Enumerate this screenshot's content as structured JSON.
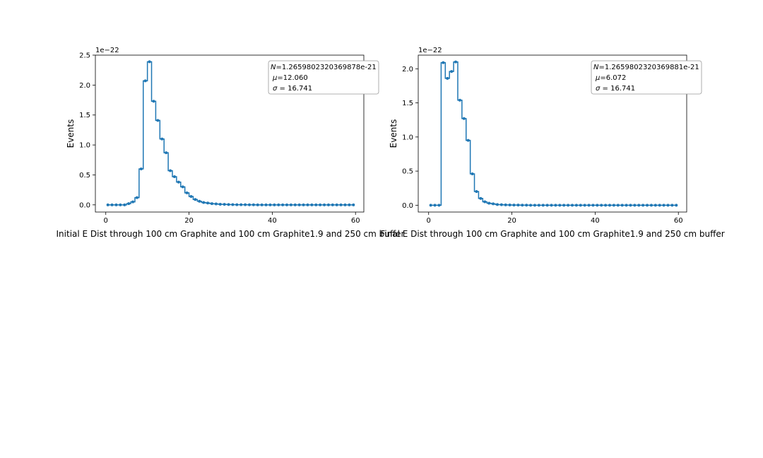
{
  "chart_data": [
    {
      "type": "line",
      "step": "mid",
      "marker": "dot",
      "color": "#1f77b4",
      "xlabel": "Initial E Dist through 100 cm Graphite and 100 cm Graphite1.9 and 250 cm buffer",
      "ylabel": "Events",
      "y_offset_label": "1e−22",
      "xlim": [
        -2.5,
        62
      ],
      "ylim": [
        -0.12,
        2.5
      ],
      "xticks": [
        0,
        20,
        40,
        60
      ],
      "xtick_labels": [
        "0",
        "20",
        "40",
        "60"
      ],
      "yticks": [
        0.0,
        0.5,
        1.0,
        1.5,
        2.0,
        2.5
      ],
      "ytick_labels": [
        "0.0",
        "0.5",
        "1.0",
        "1.5",
        "2.0",
        "2.5"
      ],
      "stats": [
        "N=1.2659802320369878e-21",
        "μ=12.060",
        "σ = 16.741"
      ],
      "series": [
        {
          "x": [
            0.5,
            1.5,
            2.5,
            3.5,
            4.5,
            5.5,
            6.5,
            7.5,
            8.5,
            9.5,
            10.5,
            11.5,
            12.5,
            13.5,
            14.5,
            15.5,
            16.5,
            17.5,
            18.5,
            19.5,
            20.5,
            21.5,
            22.5,
            23.5,
            24.5,
            25.5,
            26.5,
            27.5,
            28.5,
            29.5,
            30.5,
            31.5,
            32.5,
            33.5,
            34.5,
            35.5,
            36.5,
            37.5,
            38.5,
            39.5,
            40.5,
            41.5,
            42.5,
            43.5,
            44.5,
            45.5,
            46.5,
            47.5,
            48.5,
            49.5,
            50.5,
            51.5,
            52.5,
            53.5,
            54.5,
            55.5,
            56.5,
            57.5,
            58.5,
            59.5
          ],
          "y": [
            0.0,
            0.0,
            0.0,
            0.0,
            0.0,
            0.02,
            0.05,
            0.12,
            0.6,
            2.07,
            2.39,
            1.73,
            1.41,
            1.1,
            0.87,
            0.57,
            0.47,
            0.38,
            0.3,
            0.2,
            0.14,
            0.09,
            0.06,
            0.04,
            0.03,
            0.02,
            0.015,
            0.01,
            0.008,
            0.005,
            0.004,
            0.003,
            0.002,
            0.002,
            0.001,
            0.001,
            0.0,
            0.0,
            0.0,
            0.0,
            0.0,
            0.0,
            0.0,
            0.0,
            0.0,
            0.0,
            0.0,
            0.0,
            0.0,
            0.0,
            0.0,
            0.0,
            0.0,
            0.0,
            0.0,
            0.0,
            0.0,
            0.0,
            0.0,
            0.0
          ]
        }
      ]
    },
    {
      "type": "line",
      "step": "mid",
      "marker": "dot",
      "color": "#1f77b4",
      "xlabel": "Final E Dist through 100 cm Graphite and 100 cm Graphite1.9 and 250 cm buffer",
      "ylabel": "Events",
      "y_offset_label": "1e−22",
      "xlim": [
        -2.5,
        62
      ],
      "ylim": [
        -0.1,
        2.2
      ],
      "xticks": [
        0,
        20,
        40,
        60
      ],
      "xtick_labels": [
        "0",
        "20",
        "40",
        "60"
      ],
      "yticks": [
        0.0,
        0.5,
        1.0,
        1.5,
        2.0
      ],
      "ytick_labels": [
        "0.0",
        "0.5",
        "1.0",
        "1.5",
        "2.0"
      ],
      "stats": [
        "N=1.2659802320369881e-21",
        "μ=6.072",
        "σ = 16.741"
      ],
      "series": [
        {
          "x": [
            0.5,
            1.5,
            2.5,
            3.5,
            4.5,
            5.5,
            6.5,
            7.5,
            8.5,
            9.5,
            10.5,
            11.5,
            12.5,
            13.5,
            14.5,
            15.5,
            16.5,
            17.5,
            18.5,
            19.5,
            20.5,
            21.5,
            22.5,
            23.5,
            24.5,
            25.5,
            26.5,
            27.5,
            28.5,
            29.5,
            30.5,
            31.5,
            32.5,
            33.5,
            34.5,
            35.5,
            36.5,
            37.5,
            38.5,
            39.5,
            40.5,
            41.5,
            42.5,
            43.5,
            44.5,
            45.5,
            46.5,
            47.5,
            48.5,
            49.5,
            50.5,
            51.5,
            52.5,
            53.5,
            54.5,
            55.5,
            56.5,
            57.5,
            58.5,
            59.5
          ],
          "y": [
            0.0,
            0.0,
            0.0,
            2.09,
            1.86,
            1.96,
            2.1,
            1.54,
            1.27,
            0.95,
            0.46,
            0.2,
            0.1,
            0.05,
            0.03,
            0.02,
            0.01,
            0.008,
            0.005,
            0.003,
            0.002,
            0.002,
            0.001,
            0.001,
            0.0,
            0.0,
            0.0,
            0.0,
            0.0,
            0.0,
            0.0,
            0.0,
            0.0,
            0.0,
            0.0,
            0.0,
            0.0,
            0.0,
            0.0,
            0.0,
            0.0,
            0.0,
            0.0,
            0.0,
            0.0,
            0.0,
            0.0,
            0.0,
            0.0,
            0.0,
            0.0,
            0.0,
            0.0,
            0.0,
            0.0,
            0.0,
            0.0,
            0.0,
            0.0,
            0.0
          ]
        }
      ]
    }
  ]
}
